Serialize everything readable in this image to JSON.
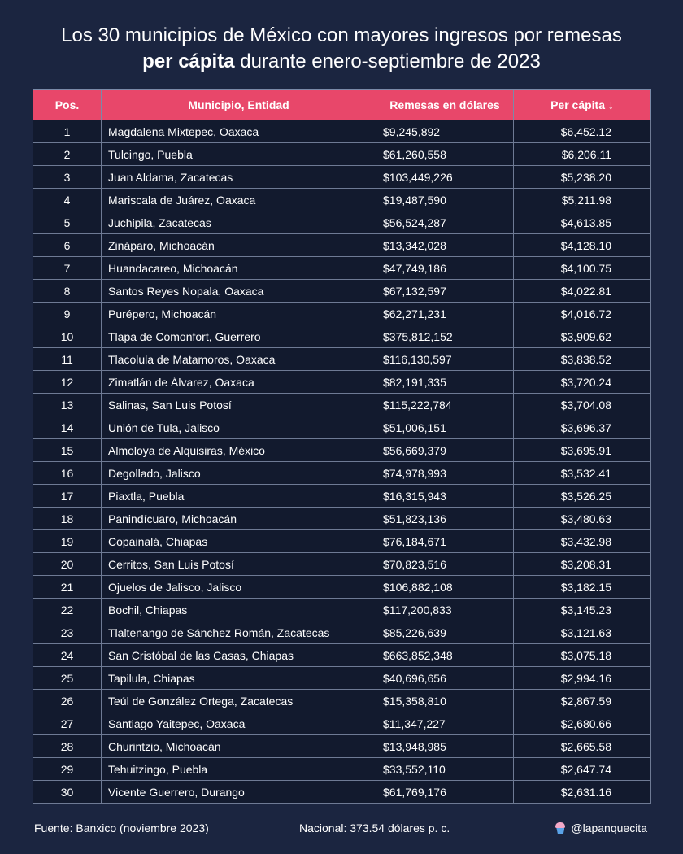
{
  "title": {
    "line1": "Los 30 municipios de México con mayores ingresos por remesas",
    "line2_bold": "per cápita",
    "line2_rest": " durante enero-septiembre de 2023"
  },
  "chart_data": {
    "type": "table",
    "columns": [
      "Pos.",
      "Municipio, Entidad",
      "Remesas en dólares",
      "Per cápita ↓"
    ],
    "rows": [
      [
        "1",
        "Magdalena Mixtepec, Oaxaca",
        "$9,245,892",
        "$6,452.12"
      ],
      [
        "2",
        "Tulcingo, Puebla",
        "$61,260,558",
        "$6,206.11"
      ],
      [
        "3",
        "Juan Aldama, Zacatecas",
        "$103,449,226",
        "$5,238.20"
      ],
      [
        "4",
        "Mariscala de Juárez, Oaxaca",
        "$19,487,590",
        "$5,211.98"
      ],
      [
        "5",
        "Juchipila, Zacatecas",
        "$56,524,287",
        "$4,613.85"
      ],
      [
        "6",
        "Zináparo, Michoacán",
        "$13,342,028",
        "$4,128.10"
      ],
      [
        "7",
        "Huandacareo, Michoacán",
        "$47,749,186",
        "$4,100.75"
      ],
      [
        "8",
        "Santos Reyes Nopala, Oaxaca",
        "$67,132,597",
        "$4,022.81"
      ],
      [
        "9",
        "Purépero, Michoacán",
        "$62,271,231",
        "$4,016.72"
      ],
      [
        "10",
        "Tlapa de Comonfort, Guerrero",
        "$375,812,152",
        "$3,909.62"
      ],
      [
        "11",
        "Tlacolula de Matamoros, Oaxaca",
        "$116,130,597",
        "$3,838.52"
      ],
      [
        "12",
        "Zimatlán de Álvarez, Oaxaca",
        "$82,191,335",
        "$3,720.24"
      ],
      [
        "13",
        "Salinas, San Luis Potosí",
        "$115,222,784",
        "$3,704.08"
      ],
      [
        "14",
        "Unión de Tula, Jalisco",
        "$51,006,151",
        "$3,696.37"
      ],
      [
        "15",
        "Almoloya de Alquisiras, México",
        "$56,669,379",
        "$3,695.91"
      ],
      [
        "16",
        "Degollado, Jalisco",
        "$74,978,993",
        "$3,532.41"
      ],
      [
        "17",
        "Piaxtla, Puebla",
        "$16,315,943",
        "$3,526.25"
      ],
      [
        "18",
        "Panindícuaro, Michoacán",
        "$51,823,136",
        "$3,480.63"
      ],
      [
        "19",
        "Copainalá, Chiapas",
        "$76,184,671",
        "$3,432.98"
      ],
      [
        "20",
        "Cerritos, San Luis Potosí",
        "$70,823,516",
        "$3,208.31"
      ],
      [
        "21",
        "Ojuelos de Jalisco, Jalisco",
        "$106,882,108",
        "$3,182.15"
      ],
      [
        "22",
        "Bochil, Chiapas",
        "$117,200,833",
        "$3,145.23"
      ],
      [
        "23",
        "Tlaltenango de Sánchez Román, Zacatecas",
        "$85,226,639",
        "$3,121.63"
      ],
      [
        "24",
        "San Cristóbal de las Casas, Chiapas",
        "$663,852,348",
        "$3,075.18"
      ],
      [
        "25",
        "Tapilula, Chiapas",
        "$40,696,656",
        "$2,994.16"
      ],
      [
        "26",
        "Teúl de González Ortega, Zacatecas",
        "$15,358,810",
        "$2,867.59"
      ],
      [
        "27",
        "Santiago Yaitepec, Oaxaca",
        "$11,347,227",
        "$2,680.66"
      ],
      [
        "28",
        "Churintzio, Michoacán",
        "$13,948,985",
        "$2,665.58"
      ],
      [
        "29",
        "Tehuitzingo, Puebla",
        "$33,552,110",
        "$2,647.74"
      ],
      [
        "30",
        "Vicente Guerrero, Durango",
        "$61,769,176",
        "$2,631.16"
      ]
    ]
  },
  "footer": {
    "source": "Fuente: Banxico (noviembre 2023)",
    "national": "Nacional: 373.54 dólares p. c.",
    "handle": "@lapanquecita",
    "handle_icon": "cupcake-icon"
  },
  "colors": {
    "background": "#1b2540",
    "header": "#e8476a",
    "cell": "#121a2e"
  }
}
